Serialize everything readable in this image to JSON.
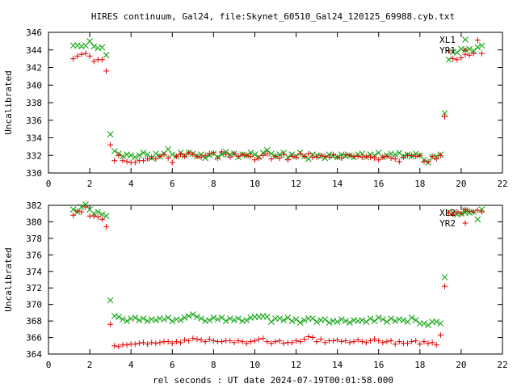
{
  "title": "HIRES continuum, Gal24, file:Skynet_60510_Gal24_120125_69988.cyb.txt",
  "xlabel": "rel seconds : UT date 2024-07-19T00:01:58.000",
  "colors": {
    "XL": "#00a000",
    "YR": "#e00000"
  },
  "chart_data": [
    {
      "type": "scatter",
      "ylabel": "Uncalibrated",
      "xlim": [
        0,
        22
      ],
      "ylim": [
        330,
        346
      ],
      "xticks": [
        0,
        2,
        4,
        6,
        8,
        10,
        12,
        14,
        16,
        18,
        20,
        22
      ],
      "yticks": [
        330,
        332,
        334,
        336,
        338,
        340,
        342,
        344,
        346
      ],
      "grid": false,
      "legend_position": "top-right",
      "series": [
        {
          "name": "XL1",
          "marker": "x",
          "color": "#00a000",
          "x": [
            1.2,
            1.4,
            1.6,
            1.8,
            2.0,
            2.2,
            2.4,
            2.6,
            2.8,
            3.0,
            3.2,
            3.4,
            3.6,
            3.8,
            4.0,
            4.2,
            4.4,
            4.6,
            4.8,
            5.0,
            5.2,
            5.4,
            5.6,
            5.8,
            6.0,
            6.2,
            6.4,
            6.6,
            6.8,
            7.0,
            7.2,
            7.4,
            7.6,
            7.8,
            8.0,
            8.2,
            8.4,
            8.6,
            8.8,
            9.0,
            9.2,
            9.4,
            9.6,
            9.8,
            10.0,
            10.2,
            10.4,
            10.6,
            10.8,
            11.0,
            11.2,
            11.4,
            11.6,
            11.8,
            12.0,
            12.2,
            12.4,
            12.6,
            12.8,
            13.0,
            13.2,
            13.4,
            13.6,
            13.8,
            14.0,
            14.2,
            14.4,
            14.6,
            14.8,
            15.0,
            15.2,
            15.4,
            15.6,
            15.8,
            16.0,
            16.2,
            16.4,
            16.6,
            16.8,
            17.0,
            17.2,
            17.4,
            17.6,
            17.8,
            18.0,
            18.2,
            18.4,
            18.6,
            18.8,
            19.0,
            19.2,
            19.4,
            19.6,
            19.8,
            20.0,
            20.2,
            20.4,
            20.6,
            20.8,
            21.0
          ],
          "y": [
            344.5,
            344.5,
            344.4,
            344.5,
            345.0,
            344.4,
            344.2,
            344.3,
            343.4,
            334.4,
            332.5,
            332.2,
            331.9,
            332.1,
            332.0,
            331.8,
            332.0,
            332.3,
            332.1,
            331.7,
            332.2,
            331.9,
            332.2,
            332.7,
            332.1,
            331.9,
            332.3,
            332.0,
            332.3,
            332.2,
            331.9,
            332.1,
            331.7,
            332.0,
            332.2,
            331.8,
            332.1,
            332.4,
            332.1,
            332.2,
            331.8,
            332.1,
            332.0,
            332.3,
            332.1,
            331.8,
            332.3,
            332.6,
            332.2,
            331.9,
            332.1,
            332.3,
            331.8,
            332.1,
            331.9,
            332.3,
            331.9,
            331.6,
            332.1,
            332.0,
            331.9,
            331.7,
            332.1,
            331.9,
            331.8,
            332.1,
            331.9,
            332.0,
            331.8,
            332.1,
            332.2,
            331.8,
            332.1,
            332.0,
            332.3,
            331.8,
            332.0,
            332.2,
            332.1,
            332.3,
            331.9,
            332.1,
            331.9,
            332.2,
            332.0,
            331.5,
            331.2,
            331.8,
            331.9,
            332.1,
            336.8,
            342.9,
            343.8,
            343.7,
            344.1,
            344.0,
            344.1,
            343.9,
            344.3,
            344.5
          ],
          "note": ""
        },
        {
          "name": "YR1",
          "marker": "+",
          "color": "#e00000",
          "x": [
            1.2,
            1.4,
            1.6,
            1.8,
            2.0,
            2.2,
            2.4,
            2.6,
            2.8,
            3.0,
            3.2,
            3.4,
            3.6,
            3.8,
            4.0,
            4.2,
            4.4,
            4.6,
            4.8,
            5.0,
            5.2,
            5.4,
            5.6,
            5.8,
            6.0,
            6.2,
            6.4,
            6.6,
            6.8,
            7.0,
            7.2,
            7.4,
            7.6,
            7.8,
            8.0,
            8.2,
            8.4,
            8.6,
            8.8,
            9.0,
            9.2,
            9.4,
            9.6,
            9.8,
            10.0,
            10.2,
            10.4,
            10.6,
            10.8,
            11.0,
            11.2,
            11.4,
            11.6,
            11.8,
            12.0,
            12.2,
            12.4,
            12.6,
            12.8,
            13.0,
            13.2,
            13.4,
            13.6,
            13.8,
            14.0,
            14.2,
            14.4,
            14.6,
            14.8,
            15.0,
            15.2,
            15.4,
            15.6,
            15.8,
            16.0,
            16.2,
            16.4,
            16.6,
            16.8,
            17.0,
            17.2,
            17.4,
            17.6,
            17.8,
            18.0,
            18.2,
            18.4,
            18.6,
            18.8,
            19.0,
            19.2,
            19.4,
            19.6,
            19.8,
            20.0,
            20.2,
            20.4,
            20.6,
            20.8,
            21.0
          ],
          "y": [
            343.0,
            343.3,
            343.5,
            343.6,
            343.3,
            342.7,
            342.9,
            342.9,
            341.6,
            333.2,
            331.4,
            332.0,
            331.4,
            331.3,
            331.2,
            331.2,
            331.4,
            331.4,
            331.6,
            331.8,
            331.6,
            331.9,
            332.1,
            331.7,
            331.2,
            331.9,
            332.1,
            331.9,
            332.3,
            332.1,
            331.9,
            331.8,
            332.0,
            332.2,
            332.3,
            331.7,
            332.4,
            332.1,
            331.8,
            332.2,
            331.9,
            332.1,
            332.0,
            331.9,
            331.5,
            331.7,
            332.0,
            332.2,
            331.6,
            331.9,
            331.7,
            332.1,
            331.5,
            331.9,
            331.8,
            332.2,
            331.9,
            332.2,
            331.8,
            331.8,
            332.0,
            331.9,
            331.8,
            332.1,
            331.8,
            331.7,
            332.1,
            332.0,
            331.9,
            331.9,
            331.8,
            331.9,
            331.8,
            331.7,
            331.5,
            331.8,
            331.9,
            331.7,
            331.6,
            331.3,
            331.8,
            332.0,
            332.0,
            331.9,
            332.0,
            331.3,
            331.3,
            331.9,
            331.6,
            332.0,
            336.4,
            343.9,
            343.0,
            342.9,
            343.1,
            343.5,
            343.4,
            343.6,
            345.1,
            343.6
          ]
        }
      ]
    },
    {
      "type": "scatter",
      "ylabel": "Uncalibrated",
      "xlim": [
        0,
        22
      ],
      "ylim": [
        364,
        382
      ],
      "xticks": [
        0,
        2,
        4,
        6,
        8,
        10,
        12,
        14,
        16,
        18,
        20,
        22
      ],
      "yticks": [
        364,
        366,
        368,
        370,
        372,
        374,
        376,
        378,
        380,
        382
      ],
      "grid": false,
      "legend_position": "top-right",
      "series": [
        {
          "name": "XL2",
          "marker": "x",
          "color": "#00a000",
          "x": [
            1.2,
            1.4,
            1.6,
            1.8,
            2.0,
            2.2,
            2.4,
            2.6,
            2.8,
            3.0,
            3.2,
            3.4,
            3.6,
            3.8,
            4.0,
            4.2,
            4.4,
            4.6,
            4.8,
            5.0,
            5.2,
            5.4,
            5.6,
            5.8,
            6.0,
            6.2,
            6.4,
            6.6,
            6.8,
            7.0,
            7.2,
            7.4,
            7.6,
            7.8,
            8.0,
            8.2,
            8.4,
            8.6,
            8.8,
            9.0,
            9.2,
            9.4,
            9.6,
            9.8,
            10.0,
            10.2,
            10.4,
            10.6,
            10.8,
            11.0,
            11.2,
            11.4,
            11.6,
            11.8,
            12.0,
            12.2,
            12.4,
            12.6,
            12.8,
            13.0,
            13.2,
            13.4,
            13.6,
            13.8,
            14.0,
            14.2,
            14.4,
            14.6,
            14.8,
            15.0,
            15.2,
            15.4,
            15.6,
            15.8,
            16.0,
            16.2,
            16.4,
            16.6,
            16.8,
            17.0,
            17.2,
            17.4,
            17.6,
            17.8,
            18.0,
            18.2,
            18.4,
            18.6,
            18.8,
            19.0,
            19.2,
            19.4,
            19.6,
            19.8,
            20.0,
            20.2,
            20.4,
            20.6,
            20.8,
            21.0
          ],
          "y": [
            381.5,
            381.2,
            381.8,
            382.1,
            381.5,
            381.0,
            381.2,
            380.9,
            380.7,
            370.5,
            368.6,
            368.5,
            368.2,
            368.0,
            368.3,
            368.4,
            368.1,
            368.3,
            368.0,
            368.2,
            368.1,
            368.3,
            368.2,
            368.4,
            368.0,
            368.2,
            368.1,
            368.4,
            368.6,
            368.8,
            368.5,
            368.3,
            368.0,
            368.1,
            368.4,
            368.2,
            368.4,
            368.0,
            368.3,
            368.1,
            368.3,
            368.0,
            368.1,
            368.4,
            368.5,
            368.5,
            368.6,
            368.5,
            367.9,
            368.3,
            368.3,
            368.1,
            368.4,
            368.0,
            368.2,
            367.8,
            368.1,
            368.3,
            368.3,
            367.9,
            368.1,
            368.2,
            367.8,
            368.0,
            367.9,
            368.2,
            368.0,
            367.8,
            368.1,
            368.0,
            368.1,
            367.9,
            368.3,
            368.0,
            368.4,
            368.2,
            367.9,
            368.3,
            368.0,
            368.2,
            368.1,
            367.9,
            368.4,
            368.1,
            367.7,
            367.7,
            367.5,
            367.9,
            367.9,
            367.7,
            373.3,
            381.2,
            381.1,
            380.9,
            381.0,
            381.4,
            381.1,
            381.2,
            380.3,
            381.5
          ]
        },
        {
          "name": "YR2",
          "marker": "+",
          "color": "#e00000",
          "x": [
            1.2,
            1.4,
            1.6,
            1.8,
            2.0,
            2.2,
            2.4,
            2.6,
            2.8,
            3.0,
            3.2,
            3.4,
            3.6,
            3.8,
            4.0,
            4.2,
            4.4,
            4.6,
            4.8,
            5.0,
            5.2,
            5.4,
            5.6,
            5.8,
            6.0,
            6.2,
            6.4,
            6.6,
            6.8,
            7.0,
            7.2,
            7.4,
            7.6,
            7.8,
            8.0,
            8.2,
            8.4,
            8.6,
            8.8,
            9.0,
            9.2,
            9.4,
            9.6,
            9.8,
            10.0,
            10.2,
            10.4,
            10.6,
            10.8,
            11.0,
            11.2,
            11.4,
            11.6,
            11.8,
            12.0,
            12.2,
            12.4,
            12.6,
            12.8,
            13.0,
            13.2,
            13.4,
            13.6,
            13.8,
            14.0,
            14.2,
            14.4,
            14.6,
            14.8,
            15.0,
            15.2,
            15.4,
            15.6,
            15.8,
            16.0,
            16.2,
            16.4,
            16.6,
            16.8,
            17.0,
            17.2,
            17.4,
            17.6,
            17.8,
            18.0,
            18.2,
            18.4,
            18.6,
            18.8,
            19.0,
            19.2,
            19.4,
            19.6,
            19.8,
            20.0,
            20.2,
            20.4,
            20.6,
            20.8,
            21.0
          ],
          "y": [
            380.8,
            381.3,
            381.2,
            381.8,
            380.7,
            380.7,
            380.6,
            380.3,
            379.4,
            367.6,
            365.0,
            364.9,
            365.1,
            365.1,
            365.2,
            365.2,
            365.3,
            365.4,
            365.2,
            365.4,
            365.3,
            365.4,
            365.5,
            365.5,
            365.3,
            365.5,
            365.4,
            365.7,
            365.6,
            365.9,
            365.8,
            365.7,
            365.5,
            365.8,
            365.6,
            365.5,
            365.5,
            365.6,
            365.6,
            365.4,
            365.6,
            365.5,
            365.3,
            365.5,
            365.6,
            365.8,
            365.9,
            365.5,
            365.3,
            365.5,
            365.6,
            365.3,
            365.4,
            365.4,
            365.6,
            365.5,
            365.8,
            366.1,
            366.0,
            365.5,
            365.8,
            365.4,
            365.6,
            365.6,
            365.7,
            365.5,
            365.6,
            365.4,
            365.5,
            365.7,
            365.5,
            365.4,
            365.6,
            365.8,
            365.6,
            365.4,
            365.5,
            365.6,
            365.2,
            365.5,
            365.3,
            365.3,
            365.5,
            365.6,
            365.2,
            365.5,
            365.3,
            365.4,
            365.1,
            366.3,
            372.2,
            381.1,
            380.9,
            381.2,
            381.0,
            381.5,
            381.3,
            381.2,
            381.4,
            381.2
          ]
        }
      ]
    }
  ]
}
